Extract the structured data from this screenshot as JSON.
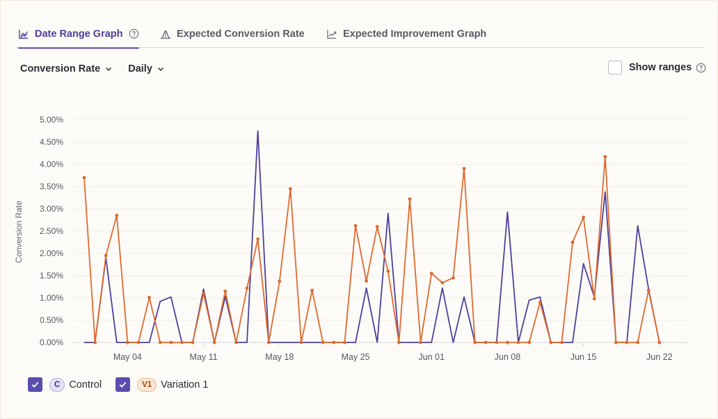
{
  "tabs": [
    {
      "label": "Date Range Graph",
      "active": true
    },
    {
      "label": "Expected Conversion Rate",
      "active": false
    },
    {
      "label": "Expected Improvement Graph",
      "active": false
    }
  ],
  "controls": {
    "metric_label": "Conversion Rate",
    "interval_label": "Daily",
    "show_ranges_label": "Show ranges",
    "show_ranges_checked": false
  },
  "legend": [
    {
      "badge": "C",
      "name": "Control",
      "checked": true
    },
    {
      "badge": "V1",
      "name": "Variation 1",
      "checked": true
    }
  ],
  "colors": {
    "control": "#4b3f9c",
    "variation": "#de6a2e",
    "accent": "#5a4dad"
  },
  "chart_data": {
    "type": "line",
    "ylabel": "Conversion Rate",
    "xlabel": "",
    "ylim": [
      0,
      5
    ],
    "yticks": [
      "0.00%",
      "0.50%",
      "1.00%",
      "1.50%",
      "2.00%",
      "2.50%",
      "3.00%",
      "3.50%",
      "4.00%",
      "4.50%",
      "5.00%"
    ],
    "xlim": [
      "2025-04-29",
      "2025-06-26"
    ],
    "xtick_labels": [
      "May 04",
      "May 11",
      "May 18",
      "May 25",
      "Jun 01",
      "Jun 08",
      "Jun 15",
      "Jun 22"
    ],
    "x_start": "Apr 30",
    "grid": true,
    "series": [
      {
        "name": "Control",
        "values": [
          0,
          0,
          1.9,
          0,
          0,
          0,
          0,
          0.92,
          1.02,
          0,
          0,
          1.2,
          0,
          1.03,
          0,
          0,
          4.75,
          0,
          0,
          0,
          0,
          0,
          0,
          0,
          0,
          0,
          1.22,
          0,
          2.9,
          0,
          0,
          0,
          0,
          1.22,
          0,
          1.02,
          0,
          0,
          0,
          2.93,
          0,
          0.95,
          1.02,
          0,
          0,
          0,
          1.77,
          1.02,
          3.38,
          0,
          0,
          2.62,
          1.2,
          0
        ]
      },
      {
        "name": "Variation 1",
        "values": [
          3.7,
          0,
          1.95,
          2.85,
          0,
          0,
          1.01,
          0,
          0,
          0,
          0,
          1.1,
          0,
          1.15,
          0,
          1.22,
          2.32,
          0,
          1.37,
          3.45,
          0,
          1.17,
          0,
          0,
          0,
          2.62,
          1.38,
          2.6,
          1.6,
          0,
          3.22,
          0,
          1.55,
          1.34,
          1.45,
          3.9,
          0,
          0,
          0,
          0,
          0,
          0,
          0.9,
          0,
          0,
          2.25,
          2.81,
          0.98,
          4.17,
          0,
          0,
          0,
          1.17,
          0
        ]
      }
    ]
  }
}
